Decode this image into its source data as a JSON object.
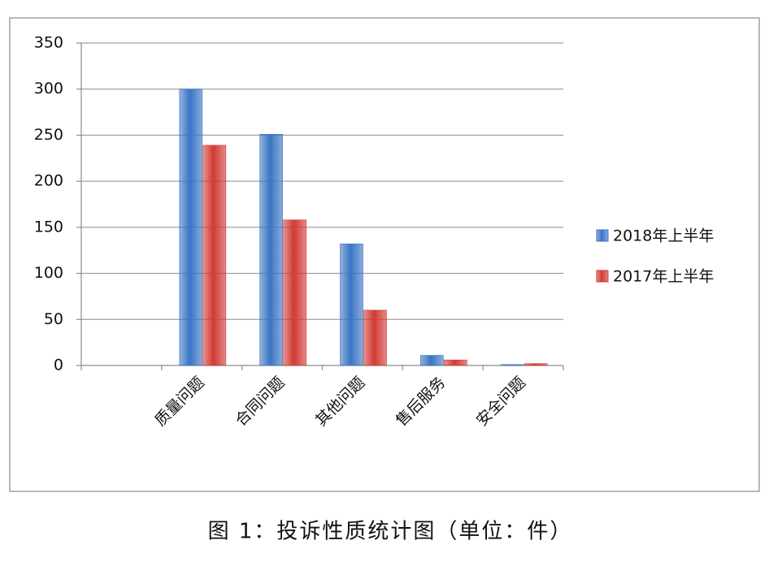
{
  "chart_data": {
    "type": "bar",
    "caption": "图 1：投诉性质统计图（单位：件）",
    "categories": [
      null,
      "质量问题",
      "合同问题",
      "其他问题",
      "售后服务",
      "安全问题"
    ],
    "series": [
      {
        "name": "2018年上半年",
        "color": "#3a75c4",
        "values": [
          null,
          300,
          251,
          132,
          11,
          1
        ]
      },
      {
        "name": "2017年上半年",
        "color": "#d23a33",
        "values": [
          null,
          239,
          158,
          60,
          6,
          2
        ]
      }
    ],
    "ylim": [
      0,
      350
    ],
    "yticks": [
      0,
      50,
      100,
      150,
      200,
      250,
      300,
      350
    ],
    "grid": true,
    "legend": "right"
  }
}
